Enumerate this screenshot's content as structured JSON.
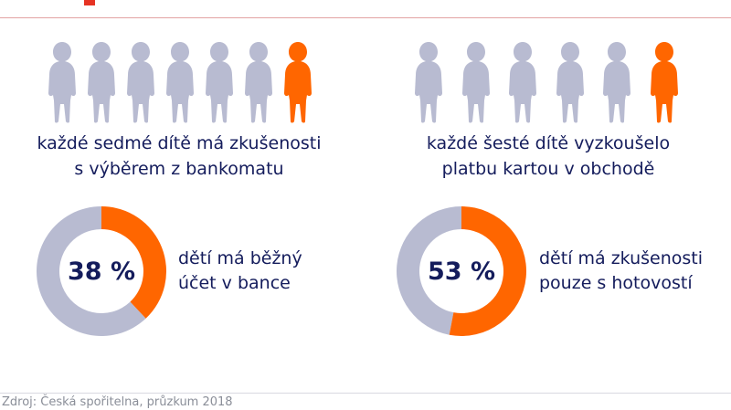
{
  "colors": {
    "accent": "#ff6600",
    "muted": "#b8bbd1",
    "text": "#141c5c",
    "brand_red": "#e63323"
  },
  "chart_data": [
    {
      "type": "pictogram",
      "icon": "child-icon",
      "count": 7,
      "highlighted": 1,
      "caption": [
        "každé sedmé dítě má zkušenosti",
        "s výběrem z bankomatu"
      ]
    },
    {
      "type": "pictogram",
      "icon": "child-icon",
      "count": 6,
      "highlighted": 1,
      "caption": [
        "každé šesté dítě vyzkoušelo",
        "platbu kartou v obchodě"
      ]
    },
    {
      "type": "pie",
      "value": 38,
      "value_label": "38 %",
      "label": [
        "dětí má běžný",
        "účet v bance"
      ]
    },
    {
      "type": "pie",
      "value": 53,
      "value_label": "53 %",
      "label": [
        "dětí má zkušenosti",
        "pouze s hotovostí"
      ]
    }
  ],
  "footer": {
    "source": "Zdroj: Česká spořitelna, průzkum 2018"
  }
}
